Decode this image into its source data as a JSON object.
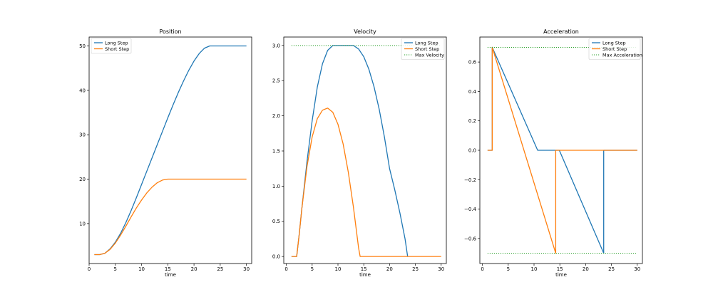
{
  "chart_data": [
    {
      "type": "line",
      "title": "Position",
      "xlabel": "time",
      "ylabel": "",
      "xlim": [
        0,
        31
      ],
      "ylim": [
        1,
        52
      ],
      "xticks": [
        0,
        5,
        10,
        15,
        20,
        25,
        30
      ],
      "yticks": [
        10,
        20,
        30,
        40,
        50
      ],
      "ytick_labels": [
        "10",
        "20",
        "30",
        "40",
        "50"
      ],
      "legend": "top-left",
      "series": [
        {
          "name": "Long Step",
          "color": "#1f77b4",
          "style": "solid",
          "x": [
            1,
            2,
            3,
            4,
            5,
            6,
            7,
            8,
            9,
            10,
            11,
            12,
            13,
            14,
            15,
            16,
            17,
            18,
            19,
            20,
            21,
            22,
            23,
            24,
            25,
            26,
            27,
            28,
            29,
            30
          ],
          "y": [
            3,
            3,
            3.3,
            4.3,
            5.8,
            7.8,
            10.2,
            12.9,
            15.8,
            18.8,
            21.8,
            24.8,
            27.8,
            30.8,
            33.8,
            36.7,
            39.5,
            42.1,
            44.5,
            46.6,
            48.3,
            49.5,
            50,
            50,
            50,
            50,
            50,
            50,
            50,
            50
          ]
        },
        {
          "name": "Short Step",
          "color": "#ff7f0e",
          "style": "solid",
          "x": [
            1,
            2,
            3,
            4,
            5,
            6,
            7,
            8,
            9,
            10,
            11,
            12,
            13,
            14,
            15,
            16,
            17,
            18,
            19,
            20,
            21,
            22,
            23,
            24,
            25,
            26,
            27,
            28,
            29,
            30
          ],
          "y": [
            3,
            3,
            3.3,
            4.2,
            5.6,
            7.4,
            9.4,
            11.5,
            13.5,
            15.3,
            16.9,
            18.2,
            19.2,
            19.8,
            20,
            20,
            20,
            20,
            20,
            20,
            20,
            20,
            20,
            20,
            20,
            20,
            20,
            20,
            20,
            20
          ]
        }
      ]
    },
    {
      "type": "line",
      "title": "Velocity",
      "xlabel": "time",
      "ylabel": "",
      "xlim": [
        -0.5,
        31
      ],
      "ylim": [
        -0.1,
        3.12
      ],
      "xticks": [
        0,
        5,
        10,
        15,
        20,
        25,
        30
      ],
      "yticks": [
        0,
        0.5,
        1.0,
        1.5,
        2.0,
        2.5,
        3.0
      ],
      "ytick_labels": [
        "0.0",
        "0.5",
        "1.0",
        "1.5",
        "2.0",
        "2.5",
        "3.0"
      ],
      "legend": "top-right",
      "series": [
        {
          "name": "Long Step",
          "color": "#1f77b4",
          "style": "solid",
          "x": [
            1.0,
            2.0,
            2.5,
            3,
            4,
            5,
            6,
            7,
            8,
            9,
            10,
            11,
            12,
            13,
            14,
            15,
            16,
            17,
            18,
            19,
            20,
            21,
            22,
            23,
            23.5
          ],
          "y": [
            0,
            0,
            0.32,
            0.68,
            1.35,
            1.93,
            2.41,
            2.74,
            2.93,
            3.0,
            3.0,
            3.0,
            3.0,
            3.0,
            2.95,
            2.84,
            2.66,
            2.41,
            2.09,
            1.7,
            1.25,
            0.95,
            0.62,
            0.25,
            0
          ]
        },
        {
          "name": "Short Step",
          "color": "#ff7f0e",
          "style": "solid",
          "x": [
            1.0,
            2.0,
            2.5,
            3,
            4,
            5,
            6,
            7,
            8,
            9,
            10,
            11,
            12,
            13,
            14,
            14.3,
            15,
            20,
            25,
            30
          ],
          "y": [
            0,
            0,
            0.32,
            0.68,
            1.28,
            1.7,
            1.96,
            2.08,
            2.11,
            2.05,
            1.88,
            1.6,
            1.2,
            0.7,
            0.12,
            0,
            0,
            0,
            0,
            0
          ]
        },
        {
          "name": "Max Velocity",
          "color": "#2ca02c",
          "style": "dotted",
          "x": [
            1,
            30
          ],
          "y": [
            3.0,
            3.0
          ]
        }
      ]
    },
    {
      "type": "line",
      "title": "Acceleration",
      "xlabel": "time",
      "ylabel": "",
      "xlim": [
        -0.5,
        31
      ],
      "ylim": [
        -0.77,
        0.77
      ],
      "xticks": [
        0,
        5,
        10,
        15,
        20,
        25,
        30
      ],
      "yticks": [
        -0.6,
        -0.4,
        -0.2,
        0.0,
        0.2,
        0.4,
        0.6
      ],
      "ytick_labels": [
        "−0.6",
        "−0.4",
        "−0.2",
        "0.0",
        "0.2",
        "0.4",
        "0.6"
      ],
      "legend": "top-right",
      "series": [
        {
          "name": "Long Step",
          "color": "#1f77b4",
          "style": "solid",
          "x": [
            1.0,
            1.9,
            1.9,
            10.7,
            14.9,
            23.5,
            23.5,
            30
          ],
          "y": [
            0,
            0,
            0.7,
            0,
            0,
            -0.7,
            0,
            0
          ]
        },
        {
          "name": "Short Step",
          "color": "#ff7f0e",
          "style": "solid",
          "x": [
            1.0,
            1.9,
            1.9,
            14.2,
            14.2,
            30
          ],
          "y": [
            0,
            0,
            0.7,
            -0.7,
            0,
            0
          ]
        },
        {
          "name": "Max Acceleration",
          "color": "#2ca02c",
          "style": "dotted",
          "x": [
            1,
            30
          ],
          "y": [
            0.7,
            0.7
          ]
        },
        {
          "name": "Max Acceleration (lower)",
          "color": "#2ca02c",
          "style": "dotted",
          "legend": false,
          "x": [
            1,
            30
          ],
          "y": [
            -0.7,
            -0.7
          ]
        }
      ]
    }
  ]
}
